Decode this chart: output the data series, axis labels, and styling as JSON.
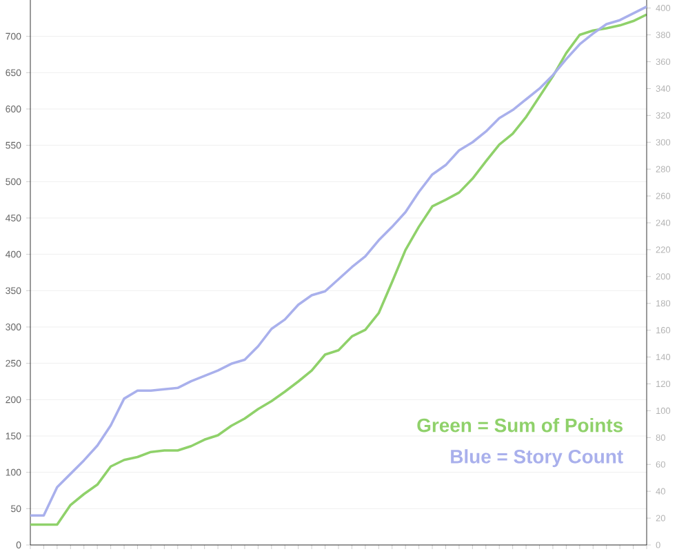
{
  "chart_data": {
    "type": "line",
    "categories": [
      null,
      null,
      null,
      null,
      null,
      null,
      null,
      null,
      null,
      null,
      null,
      null,
      null,
      null,
      null,
      null,
      null,
      null,
      null,
      null,
      null,
      null,
      null,
      null,
      null,
      null,
      null,
      null,
      null,
      null,
      null,
      null,
      null,
      null,
      null,
      null,
      null,
      null,
      null,
      null,
      null,
      null,
      null,
      null,
      null,
      null,
      null
    ],
    "series": [
      {
        "name": "Green = Sum of Points",
        "color": "#8fd16a",
        "values": [
          28,
          28,
          28,
          55,
          70,
          83,
          108,
          117,
          121,
          128,
          130,
          130,
          136,
          145,
          151,
          164,
          174,
          187,
          198,
          211,
          225,
          240,
          262,
          268,
          287,
          296,
          319,
          362,
          406,
          438,
          466,
          475,
          485,
          504,
          528,
          551,
          566,
          589,
          617,
          645,
          677,
          702,
          708,
          711,
          715,
          721,
          730
        ]
      },
      {
        "name": "Blue = Story Count",
        "color": "#a9b0ec",
        "axis": "y2",
        "values": [
          22,
          22,
          43,
          53,
          63,
          74,
          89,
          109,
          115,
          115,
          116,
          117,
          122,
          126,
          130,
          135,
          138,
          148,
          161,
          168,
          179,
          186,
          189,
          198,
          207,
          215,
          227,
          237,
          248,
          263,
          276,
          283,
          294,
          300,
          308,
          318,
          324,
          332,
          340,
          350,
          362,
          373,
          381,
          388,
          391,
          396,
          401
        ]
      }
    ],
    "ylim": [
      0,
      750
    ],
    "yticks": [
      0,
      50,
      100,
      150,
      200,
      250,
      300,
      350,
      400,
      450,
      500,
      550,
      600,
      650,
      700
    ],
    "y2lim": [
      0,
      406
    ],
    "y2ticks": [
      0,
      20,
      40,
      60,
      80,
      100,
      120,
      140,
      160,
      180,
      200,
      220,
      240,
      260,
      280,
      300,
      320,
      340,
      360,
      380,
      400
    ],
    "grid": "y",
    "legend": "bottom right",
    "marker": "none",
    "line_style": "solid"
  }
}
